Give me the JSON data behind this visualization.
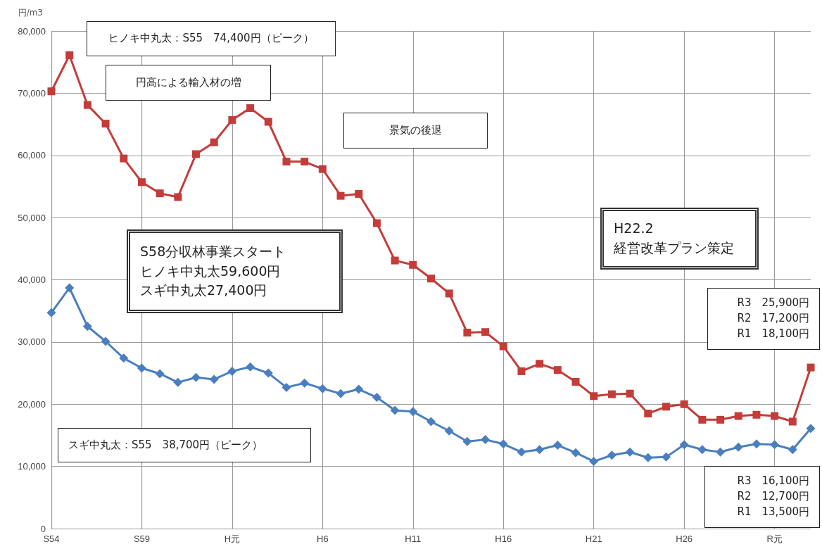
{
  "chart_data": {
    "type": "line",
    "ylabel": "円/m3",
    "categories": [
      "S54",
      null,
      null,
      null,
      null,
      "S59",
      null,
      null,
      null,
      null,
      "H元",
      null,
      null,
      null,
      null,
      "H6",
      null,
      null,
      null,
      null,
      "H11",
      null,
      null,
      null,
      null,
      "H16",
      null,
      null,
      null,
      null,
      "H21",
      null,
      null,
      null,
      null,
      "H26",
      null,
      null,
      null,
      null,
      "R元",
      null,
      null
    ],
    "series": [
      {
        "color": "#c43c39",
        "marker": "square",
        "values": [
          70300,
          76100,
          68100,
          65100,
          59500,
          55700,
          53900,
          53300,
          60200,
          62100,
          65700,
          67600,
          65400,
          59000,
          59000,
          57800,
          53500,
          53800,
          49100,
          43100,
          42400,
          40200,
          37800,
          31500,
          31600,
          29300,
          25300,
          26500,
          25500,
          23600,
          21300,
          21600,
          21700,
          18500,
          19600,
          20000,
          17500,
          17500,
          18100,
          18300,
          18100,
          17200,
          25900
        ]
      },
      {
        "color": "#4a7fbf",
        "marker": "diamond",
        "values": [
          34700,
          38700,
          32500,
          30100,
          27400,
          25800,
          24900,
          23500,
          24300,
          24000,
          25300,
          26000,
          25000,
          22700,
          23400,
          22500,
          21700,
          22400,
          21100,
          19000,
          18800,
          17200,
          15700,
          14000,
          14300,
          13600,
          12300,
          12700,
          13400,
          12200,
          10800,
          11800,
          12300,
          11400,
          11500,
          13500,
          12700,
          12300,
          13100,
          13600,
          13500,
          12700,
          16100
        ]
      }
    ],
    "ylim": [
      0,
      80000
    ],
    "yticks": [
      0,
      {
        "value": 10000,
        "label": "10,000"
      },
      {
        "value": 20000,
        "label": "20,000"
      },
      {
        "value": 30000,
        "label": "30,000"
      },
      {
        "value": 40000,
        "label": "40,000"
      },
      {
        "value": 50000,
        "label": "50,000"
      },
      {
        "value": 60000,
        "label": "60,000"
      },
      {
        "value": 70000,
        "label": "70,000"
      },
      {
        "value": 80000,
        "label": "80,000"
      }
    ],
    "grid": true,
    "annotations": [
      "ヒノキ中丸太：S55　74,400円（ピーク）",
      "円高による輸入材の増",
      "景気の後退",
      "S58分収林事業スタート",
      "ヒノキ中丸太59,600円",
      "スギ中丸太27,400円",
      "H22.2",
      "経営改革プラン策定",
      "R3　25,900円",
      "R2　17,200円",
      "R1　18,100円",
      "スギ中丸太：S55　38,700円（ピーク）",
      "R3　16,100円",
      "R2　12,700円",
      "R1　13,500円"
    ]
  }
}
